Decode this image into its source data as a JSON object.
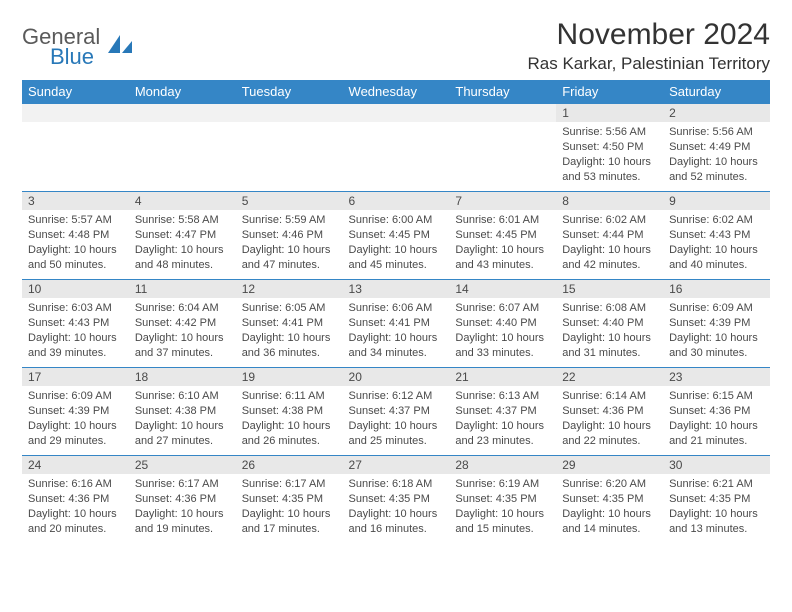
{
  "logo": {
    "line1": "General",
    "line2": "Blue"
  },
  "title": "November 2024",
  "location": "Ras Karkar, Palestinian Territory",
  "colors": {
    "header_bg": "#3586c6",
    "header_text": "#ffffff",
    "daynum_bg": "#e8e8e8",
    "border": "#3586c6",
    "text": "#4a4a4a",
    "logo_gray": "#5a5a5a",
    "logo_blue": "#2878b8"
  },
  "day_names": [
    "Sunday",
    "Monday",
    "Tuesday",
    "Wednesday",
    "Thursday",
    "Friday",
    "Saturday"
  ],
  "weeks": [
    [
      null,
      null,
      null,
      null,
      null,
      {
        "n": "1",
        "sunrise": "5:56 AM",
        "sunset": "4:50 PM",
        "daylight": "10 hours and 53 minutes."
      },
      {
        "n": "2",
        "sunrise": "5:56 AM",
        "sunset": "4:49 PM",
        "daylight": "10 hours and 52 minutes."
      }
    ],
    [
      {
        "n": "3",
        "sunrise": "5:57 AM",
        "sunset": "4:48 PM",
        "daylight": "10 hours and 50 minutes."
      },
      {
        "n": "4",
        "sunrise": "5:58 AM",
        "sunset": "4:47 PM",
        "daylight": "10 hours and 48 minutes."
      },
      {
        "n": "5",
        "sunrise": "5:59 AM",
        "sunset": "4:46 PM",
        "daylight": "10 hours and 47 minutes."
      },
      {
        "n": "6",
        "sunrise": "6:00 AM",
        "sunset": "4:45 PM",
        "daylight": "10 hours and 45 minutes."
      },
      {
        "n": "7",
        "sunrise": "6:01 AM",
        "sunset": "4:45 PM",
        "daylight": "10 hours and 43 minutes."
      },
      {
        "n": "8",
        "sunrise": "6:02 AM",
        "sunset": "4:44 PM",
        "daylight": "10 hours and 42 minutes."
      },
      {
        "n": "9",
        "sunrise": "6:02 AM",
        "sunset": "4:43 PM",
        "daylight": "10 hours and 40 minutes."
      }
    ],
    [
      {
        "n": "10",
        "sunrise": "6:03 AM",
        "sunset": "4:43 PM",
        "daylight": "10 hours and 39 minutes."
      },
      {
        "n": "11",
        "sunrise": "6:04 AM",
        "sunset": "4:42 PM",
        "daylight": "10 hours and 37 minutes."
      },
      {
        "n": "12",
        "sunrise": "6:05 AM",
        "sunset": "4:41 PM",
        "daylight": "10 hours and 36 minutes."
      },
      {
        "n": "13",
        "sunrise": "6:06 AM",
        "sunset": "4:41 PM",
        "daylight": "10 hours and 34 minutes."
      },
      {
        "n": "14",
        "sunrise": "6:07 AM",
        "sunset": "4:40 PM",
        "daylight": "10 hours and 33 minutes."
      },
      {
        "n": "15",
        "sunrise": "6:08 AM",
        "sunset": "4:40 PM",
        "daylight": "10 hours and 31 minutes."
      },
      {
        "n": "16",
        "sunrise": "6:09 AM",
        "sunset": "4:39 PM",
        "daylight": "10 hours and 30 minutes."
      }
    ],
    [
      {
        "n": "17",
        "sunrise": "6:09 AM",
        "sunset": "4:39 PM",
        "daylight": "10 hours and 29 minutes."
      },
      {
        "n": "18",
        "sunrise": "6:10 AM",
        "sunset": "4:38 PM",
        "daylight": "10 hours and 27 minutes."
      },
      {
        "n": "19",
        "sunrise": "6:11 AM",
        "sunset": "4:38 PM",
        "daylight": "10 hours and 26 minutes."
      },
      {
        "n": "20",
        "sunrise": "6:12 AM",
        "sunset": "4:37 PM",
        "daylight": "10 hours and 25 minutes."
      },
      {
        "n": "21",
        "sunrise": "6:13 AM",
        "sunset": "4:37 PM",
        "daylight": "10 hours and 23 minutes."
      },
      {
        "n": "22",
        "sunrise": "6:14 AM",
        "sunset": "4:36 PM",
        "daylight": "10 hours and 22 minutes."
      },
      {
        "n": "23",
        "sunrise": "6:15 AM",
        "sunset": "4:36 PM",
        "daylight": "10 hours and 21 minutes."
      }
    ],
    [
      {
        "n": "24",
        "sunrise": "6:16 AM",
        "sunset": "4:36 PM",
        "daylight": "10 hours and 20 minutes."
      },
      {
        "n": "25",
        "sunrise": "6:17 AM",
        "sunset": "4:36 PM",
        "daylight": "10 hours and 19 minutes."
      },
      {
        "n": "26",
        "sunrise": "6:17 AM",
        "sunset": "4:35 PM",
        "daylight": "10 hours and 17 minutes."
      },
      {
        "n": "27",
        "sunrise": "6:18 AM",
        "sunset": "4:35 PM",
        "daylight": "10 hours and 16 minutes."
      },
      {
        "n": "28",
        "sunrise": "6:19 AM",
        "sunset": "4:35 PM",
        "daylight": "10 hours and 15 minutes."
      },
      {
        "n": "29",
        "sunrise": "6:20 AM",
        "sunset": "4:35 PM",
        "daylight": "10 hours and 14 minutes."
      },
      {
        "n": "30",
        "sunrise": "6:21 AM",
        "sunset": "4:35 PM",
        "daylight": "10 hours and 13 minutes."
      }
    ]
  ],
  "labels": {
    "sunrise": "Sunrise:",
    "sunset": "Sunset:",
    "daylight": "Daylight:"
  }
}
